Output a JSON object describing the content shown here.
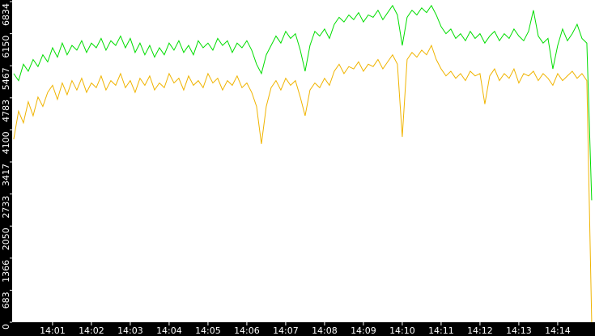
{
  "chart_data": {
    "type": "line",
    "xlim": [
      -0.04,
      14.96
    ],
    "xticks": [
      {
        "value": 1,
        "label": "14:01"
      },
      {
        "value": 2,
        "label": "14:02"
      },
      {
        "value": 3,
        "label": "14:03"
      },
      {
        "value": 4,
        "label": "14:04"
      },
      {
        "value": 5,
        "label": "14:05"
      },
      {
        "value": 6,
        "label": "14:06"
      },
      {
        "value": 7,
        "label": "14:07"
      },
      {
        "value": 8,
        "label": "14:08"
      },
      {
        "value": 9,
        "label": "14:09"
      },
      {
        "value": 10,
        "label": "14:10"
      },
      {
        "value": 11,
        "label": "14:11"
      },
      {
        "value": 12,
        "label": "14:12"
      },
      {
        "value": 13,
        "label": "14:13"
      },
      {
        "value": 14,
        "label": "14:14"
      }
    ],
    "ylim": [
      0,
      6834
    ],
    "yticks": [
      0,
      683,
      1366,
      2050,
      2733,
      3417,
      4100,
      4783,
      5467,
      6150,
      6834
    ],
    "x": [
      0,
      0.125,
      0.25,
      0.375,
      0.5,
      0.625,
      0.75,
      0.875,
      1,
      1.125,
      1.25,
      1.375,
      1.5,
      1.625,
      1.75,
      1.875,
      2,
      2.125,
      2.25,
      2.375,
      2.5,
      2.625,
      2.75,
      2.875,
      3,
      3.125,
      3.25,
      3.375,
      3.5,
      3.625,
      3.75,
      3.875,
      4,
      4.125,
      4.25,
      4.375,
      4.5,
      4.625,
      4.75,
      4.875,
      5,
      5.125,
      5.25,
      5.375,
      5.5,
      5.625,
      5.75,
      5.875,
      6,
      6.125,
      6.25,
      6.375,
      6.5,
      6.625,
      6.75,
      6.875,
      7,
      7.125,
      7.25,
      7.375,
      7.5,
      7.625,
      7.75,
      7.875,
      8,
      8.125,
      8.25,
      8.375,
      8.5,
      8.625,
      8.75,
      8.875,
      9,
      9.125,
      9.25,
      9.375,
      9.5,
      9.625,
      9.75,
      9.875,
      10,
      10.125,
      10.25,
      10.375,
      10.5,
      10.625,
      10.75,
      10.875,
      11,
      11.125,
      11.25,
      11.375,
      11.5,
      11.625,
      11.75,
      11.875,
      12,
      12.125,
      12.25,
      12.375,
      12.5,
      12.625,
      12.75,
      12.875,
      13,
      13.125,
      13.25,
      13.375,
      13.5,
      13.625,
      13.75,
      13.875,
      14,
      14.125,
      14.25,
      14.375,
      14.5,
      14.625,
      14.75,
      14.875
    ],
    "series": [
      {
        "color": "#00dd00",
        "values": [
          5300,
          5150,
          5500,
          5350,
          5600,
          5450,
          5700,
          5550,
          5850,
          5650,
          5950,
          5700,
          5900,
          5800,
          6000,
          5750,
          5950,
          5850,
          6050,
          5800,
          6000,
          5900,
          6100,
          5850,
          6050,
          5750,
          5950,
          5700,
          5900,
          5650,
          5850,
          5700,
          5950,
          5800,
          6000,
          5750,
          5900,
          5700,
          6000,
          5850,
          5950,
          5800,
          6050,
          5900,
          6000,
          5750,
          5950,
          5850,
          6000,
          5800,
          5500,
          5300,
          5700,
          5900,
          6100,
          5950,
          6200,
          6050,
          6150,
          5800,
          5350,
          5900,
          6200,
          6100,
          6250,
          6050,
          6350,
          6500,
          6400,
          6550,
          6450,
          6600,
          6400,
          6550,
          6500,
          6650,
          6450,
          6600,
          6750,
          6550,
          5900,
          6500,
          6650,
          6550,
          6700,
          6600,
          6750,
          6550,
          6300,
          6150,
          6250,
          6050,
          6150,
          6000,
          6200,
          6050,
          6150,
          5950,
          6100,
          6200,
          6000,
          6150,
          6050,
          6250,
          6100,
          6000,
          6200,
          6650,
          6100,
          5950,
          6050,
          5400,
          5900,
          6250,
          6000,
          6150,
          6350,
          6050,
          5950,
          2600
        ]
      },
      {
        "color": "#f0b400",
        "values": [
          3900,
          4500,
          4250,
          4700,
          4400,
          4800,
          4600,
          4900,
          5050,
          4750,
          5100,
          4850,
          5150,
          4950,
          5200,
          4900,
          5100,
          5000,
          5250,
          4950,
          5150,
          5050,
          5300,
          5000,
          5150,
          4900,
          5200,
          5050,
          5250,
          4950,
          5100,
          5000,
          5300,
          5100,
          5200,
          4950,
          5250,
          5050,
          5150,
          5000,
          5300,
          5100,
          5200,
          4950,
          5150,
          5050,
          5250,
          5000,
          5100,
          4900,
          4600,
          3800,
          4600,
          5000,
          5150,
          4950,
          5200,
          5050,
          5150,
          4800,
          4400,
          4950,
          5100,
          5000,
          5200,
          5050,
          5350,
          5500,
          5300,
          5450,
          5400,
          5550,
          5350,
          5500,
          5450,
          5600,
          5400,
          5550,
          5700,
          5500,
          3950,
          5600,
          5750,
          5650,
          5800,
          5700,
          5900,
          5600,
          5400,
          5250,
          5350,
          5200,
          5300,
          5150,
          5350,
          5250,
          5300,
          4650,
          5250,
          5400,
          5150,
          5300,
          5200,
          5400,
          5100,
          5300,
          5250,
          5350,
          5150,
          5300,
          5200,
          5050,
          5300,
          5150,
          5250,
          5350,
          5200,
          5300,
          5150,
          0
        ]
      }
    ]
  }
}
